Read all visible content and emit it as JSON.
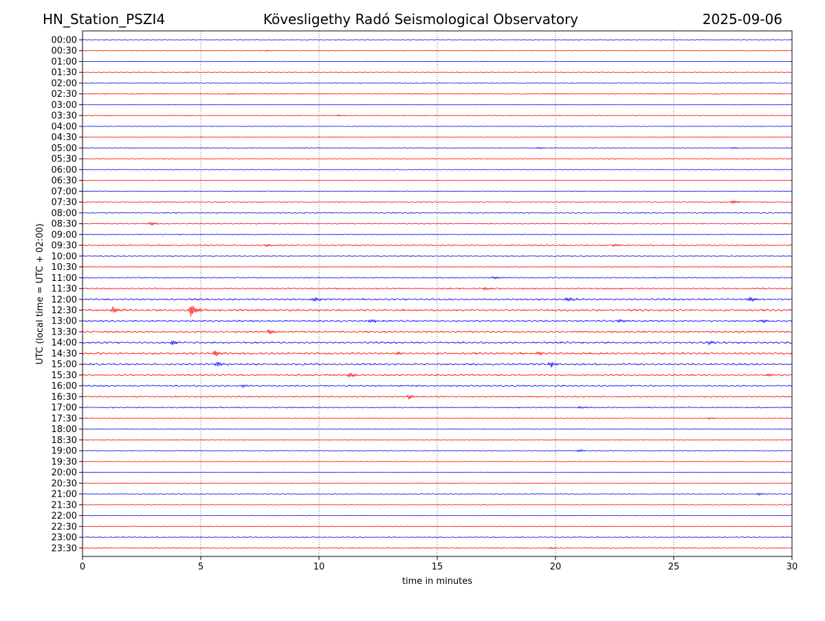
{
  "header": {
    "station": "HN_Station_PSZI4",
    "observatory": "Kövesligethy Radó Seismological Observatory",
    "date": "2025-09-06"
  },
  "chart_data": {
    "type": "line",
    "title": "Kövesligethy Radó Seismological Observatory",
    "xlabel": "time in minutes",
    "ylabel": "UTC (local time = UTC + 02:00)",
    "xlim": [
      0,
      30
    ],
    "x_ticks": [
      0,
      5,
      10,
      15,
      20,
      25,
      30
    ],
    "vertical_gridlines_at": [
      5,
      10,
      15,
      20,
      25
    ],
    "grid": "vertical dotted",
    "row_labels": [
      "00:00",
      "00:30",
      "01:00",
      "01:30",
      "02:00",
      "02:30",
      "03:00",
      "03:30",
      "04:00",
      "04:30",
      "05:00",
      "05:30",
      "06:00",
      "06:30",
      "07:00",
      "07:30",
      "08:00",
      "08:30",
      "09:00",
      "09:30",
      "10:00",
      "10:30",
      "11:00",
      "11:30",
      "12:00",
      "12:30",
      "13:00",
      "13:30",
      "14:00",
      "14:30",
      "15:00",
      "15:30",
      "16:00",
      "16:30",
      "17:00",
      "17:30",
      "18:00",
      "18:30",
      "19:00",
      "19:30",
      "20:00",
      "20:30",
      "21:00",
      "21:30",
      "22:00",
      "22:30",
      "23:00",
      "23:30"
    ],
    "row_colors": [
      "#0000ff",
      "#ff0000"
    ],
    "trace_activity": [
      0.05,
      0.1,
      0.05,
      0.15,
      0.1,
      0.2,
      0.05,
      0.2,
      0.05,
      0.1,
      0.25,
      0.15,
      0.1,
      0.15,
      0.15,
      0.25,
      0.35,
      0.3,
      0.25,
      0.45,
      0.35,
      0.3,
      0.4,
      0.55,
      0.75,
      0.85,
      0.75,
      0.7,
      0.8,
      0.85,
      0.8,
      0.65,
      0.6,
      0.5,
      0.4,
      0.25,
      0.2,
      0.15,
      0.2,
      0.1,
      0.1,
      0.1,
      0.2,
      0.1,
      0.1,
      0.15,
      0.3,
      0.25
    ],
    "events": [
      {
        "row": 1,
        "minute": 7.8,
        "amp": 1.0
      },
      {
        "row": 3,
        "minute": 4.4,
        "amp": 1.0
      },
      {
        "row": 5,
        "minute": 6.2,
        "amp": 1.2
      },
      {
        "row": 7,
        "minute": 10.8,
        "amp": 1.0
      },
      {
        "row": 7,
        "minute": 4.3,
        "amp": 0.7
      },
      {
        "row": 10,
        "minute": 27.5,
        "amp": 1.5
      },
      {
        "row": 10,
        "minute": 19.3,
        "amp": 1.2
      },
      {
        "row": 15,
        "minute": 27.5,
        "amp": 3.0
      },
      {
        "row": 17,
        "minute": 2.9,
        "amp": 3.0
      },
      {
        "row": 19,
        "minute": 7.8,
        "amp": 2.5
      },
      {
        "row": 19,
        "minute": 22.5,
        "amp": 2.5
      },
      {
        "row": 22,
        "minute": 17.4,
        "amp": 2.0
      },
      {
        "row": 23,
        "minute": 17.0,
        "amp": 2.5
      },
      {
        "row": 24,
        "minute": 9.8,
        "amp": 4.0
      },
      {
        "row": 24,
        "minute": 20.5,
        "amp": 4.0
      },
      {
        "row": 24,
        "minute": 28.2,
        "amp": 4.0
      },
      {
        "row": 25,
        "minute": 1.3,
        "amp": 5.0
      },
      {
        "row": 25,
        "minute": 4.6,
        "amp": 10.0
      },
      {
        "row": 26,
        "minute": 12.2,
        "amp": 3.5
      },
      {
        "row": 26,
        "minute": 22.7,
        "amp": 3.0
      },
      {
        "row": 26,
        "minute": 28.8,
        "amp": 3.0
      },
      {
        "row": 27,
        "minute": 7.9,
        "amp": 4.0
      },
      {
        "row": 28,
        "minute": 3.8,
        "amp": 3.5
      },
      {
        "row": 28,
        "minute": 26.5,
        "amp": 3.0
      },
      {
        "row": 29,
        "minute": 5.6,
        "amp": 5.0
      },
      {
        "row": 29,
        "minute": 13.3,
        "amp": 3.0
      },
      {
        "row": 29,
        "minute": 19.3,
        "amp": 3.0
      },
      {
        "row": 30,
        "minute": 5.7,
        "amp": 4.0
      },
      {
        "row": 30,
        "minute": 19.8,
        "amp": 4.0
      },
      {
        "row": 31,
        "minute": 11.3,
        "amp": 4.0
      },
      {
        "row": 31,
        "minute": 29.0,
        "amp": 2.5
      },
      {
        "row": 32,
        "minute": 6.8,
        "amp": 2.5
      },
      {
        "row": 33,
        "minute": 13.8,
        "amp": 3.5
      },
      {
        "row": 34,
        "minute": 21.0,
        "amp": 2.0
      },
      {
        "row": 35,
        "minute": 26.5,
        "amp": 1.5
      },
      {
        "row": 38,
        "minute": 21.0,
        "amp": 2.0
      },
      {
        "row": 42,
        "minute": 28.6,
        "amp": 2.0
      },
      {
        "row": 47,
        "minute": 19.8,
        "amp": 1.5
      }
    ]
  }
}
